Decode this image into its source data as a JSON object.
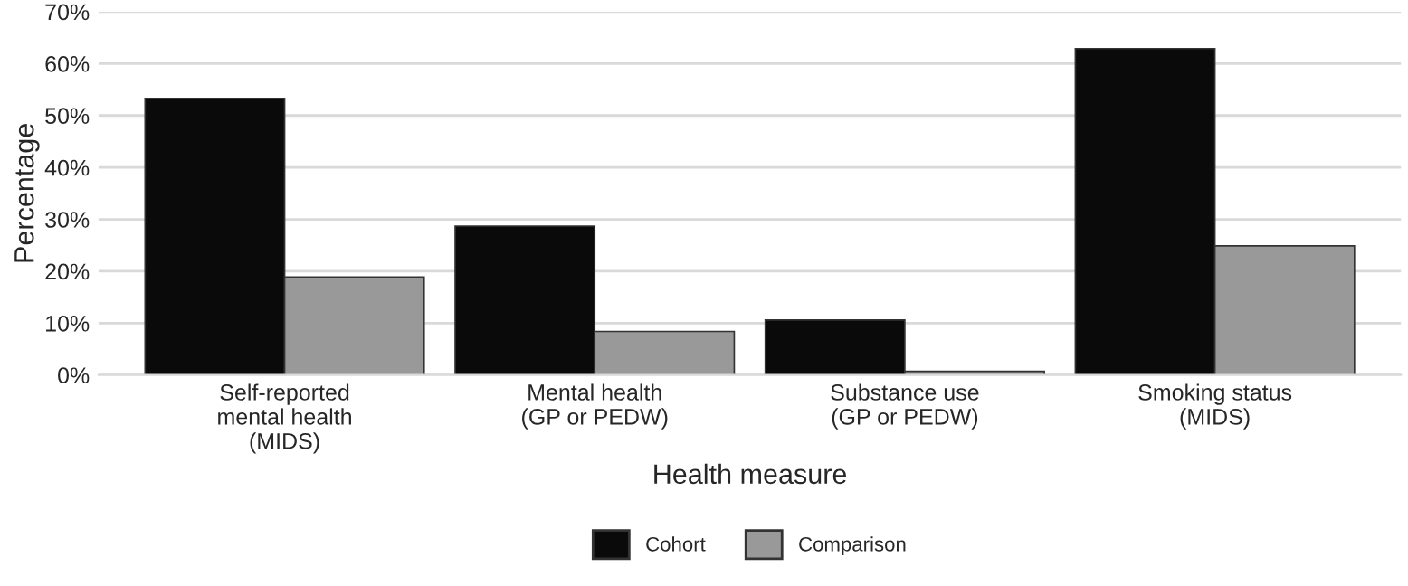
{
  "chart_data": {
    "type": "bar",
    "xlabel": "Health measure",
    "ylabel": "Percentage",
    "categories": [
      "Self-reported\nmental health\n(MIDS)",
      "Mental health\n(GP or PEDW)",
      "Substance use\n(GP or PEDW)",
      "Smoking status\n(MIDS)"
    ],
    "series": [
      {
        "name": "Cohort",
        "color": "#0a0a0a",
        "values": [
          53.3,
          28.7,
          10.6,
          62.9
        ]
      },
      {
        "name": "Comparison",
        "color": "#999999",
        "values": [
          18.9,
          8.4,
          0.7,
          24.9
        ]
      }
    ],
    "ylim": [
      0,
      70
    ],
    "yticks": [
      {
        "value": 0,
        "label": "0%"
      },
      {
        "value": 10,
        "label": "10%"
      },
      {
        "value": 20,
        "label": "20%"
      },
      {
        "value": 30,
        "label": "30%"
      },
      {
        "value": 40,
        "label": "40%"
      },
      {
        "value": 50,
        "label": "50%"
      },
      {
        "value": 60,
        "label": "60%"
      },
      {
        "value": 70,
        "label": "70%"
      }
    ],
    "grid": "y",
    "legend": "bottom"
  }
}
